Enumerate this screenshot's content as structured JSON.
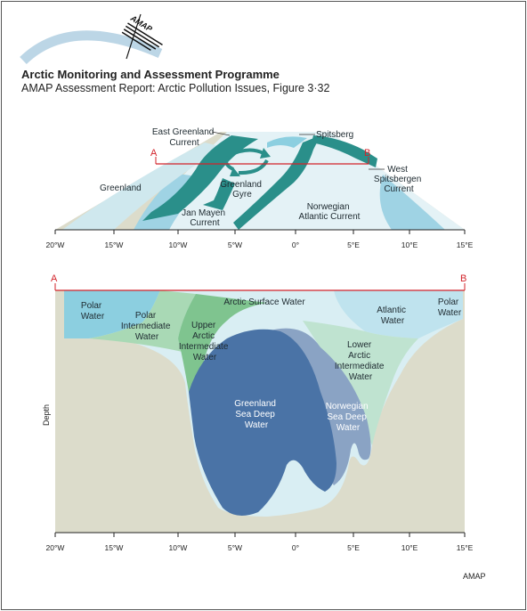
{
  "header": {
    "title": "Arctic Monitoring and Assessment Programme",
    "subtitle": "AMAP Assessment Report: Arctic Pollution Issues, Figure 3·32",
    "logo_text": "AMAP"
  },
  "map": {
    "labels": {
      "east_greenland": [
        "East Greenland",
        "Current"
      ],
      "spitsberg": "Spitsberg",
      "point_a": "A",
      "point_b": "B",
      "west_spitsbergen": [
        "West",
        "Spitsbergen",
        "Current"
      ],
      "greenland": "Greenland",
      "greenland_gyre": [
        "Greenland",
        "Gyre"
      ],
      "jan_mayen": [
        "Jan Mayen",
        "Current"
      ],
      "norwegian_atlantic": [
        "Norwegian",
        "Atlantic Current"
      ]
    },
    "ticks": [
      "20°W",
      "15°W",
      "10°W",
      "5°W",
      "0°",
      "5°E",
      "10°E",
      "15°E"
    ]
  },
  "section": {
    "point_a": "A",
    "point_b": "B",
    "depth_label": "Depth",
    "water_masses": {
      "arctic_surface": "Arctic Surface Water",
      "polar_left": [
        "Polar",
        "Water"
      ],
      "polar_intermediate": [
        "Polar",
        "Intermediate",
        "Water"
      ],
      "upper_arctic": [
        "Upper",
        "Arctic",
        "Intermediate",
        "Water"
      ],
      "atlantic": [
        "Atlantic",
        "Water"
      ],
      "polar_right": [
        "Polar",
        "Water"
      ],
      "lower_arctic": [
        "Lower",
        "Arctic",
        "Intermediate",
        "Water"
      ],
      "greenland_deep": [
        "Greenland",
        "Sea Deep",
        "Water"
      ],
      "norwegian_deep": [
        "Norwegian",
        "Sea Deep",
        "Water"
      ]
    },
    "ticks": [
      "20°W",
      "15°W",
      "10°W",
      "5°W",
      "0°",
      "5°E",
      "10°E",
      "15°E"
    ]
  },
  "credit": "AMAP",
  "colors": {
    "land": "#dcdccb",
    "polar_water": "#8ccfe0",
    "arctic_surface": "#d9eef3",
    "intermediate_green": "#a9d9b5",
    "upper_arctic_green": "#7fc48f",
    "lower_arctic": "#bfe3d0",
    "greenland_deep": "#4a73a6",
    "norwegian_deep": "#8aa3c4",
    "current_teal": "#2a8f8a",
    "section_line": "#d2232a"
  }
}
